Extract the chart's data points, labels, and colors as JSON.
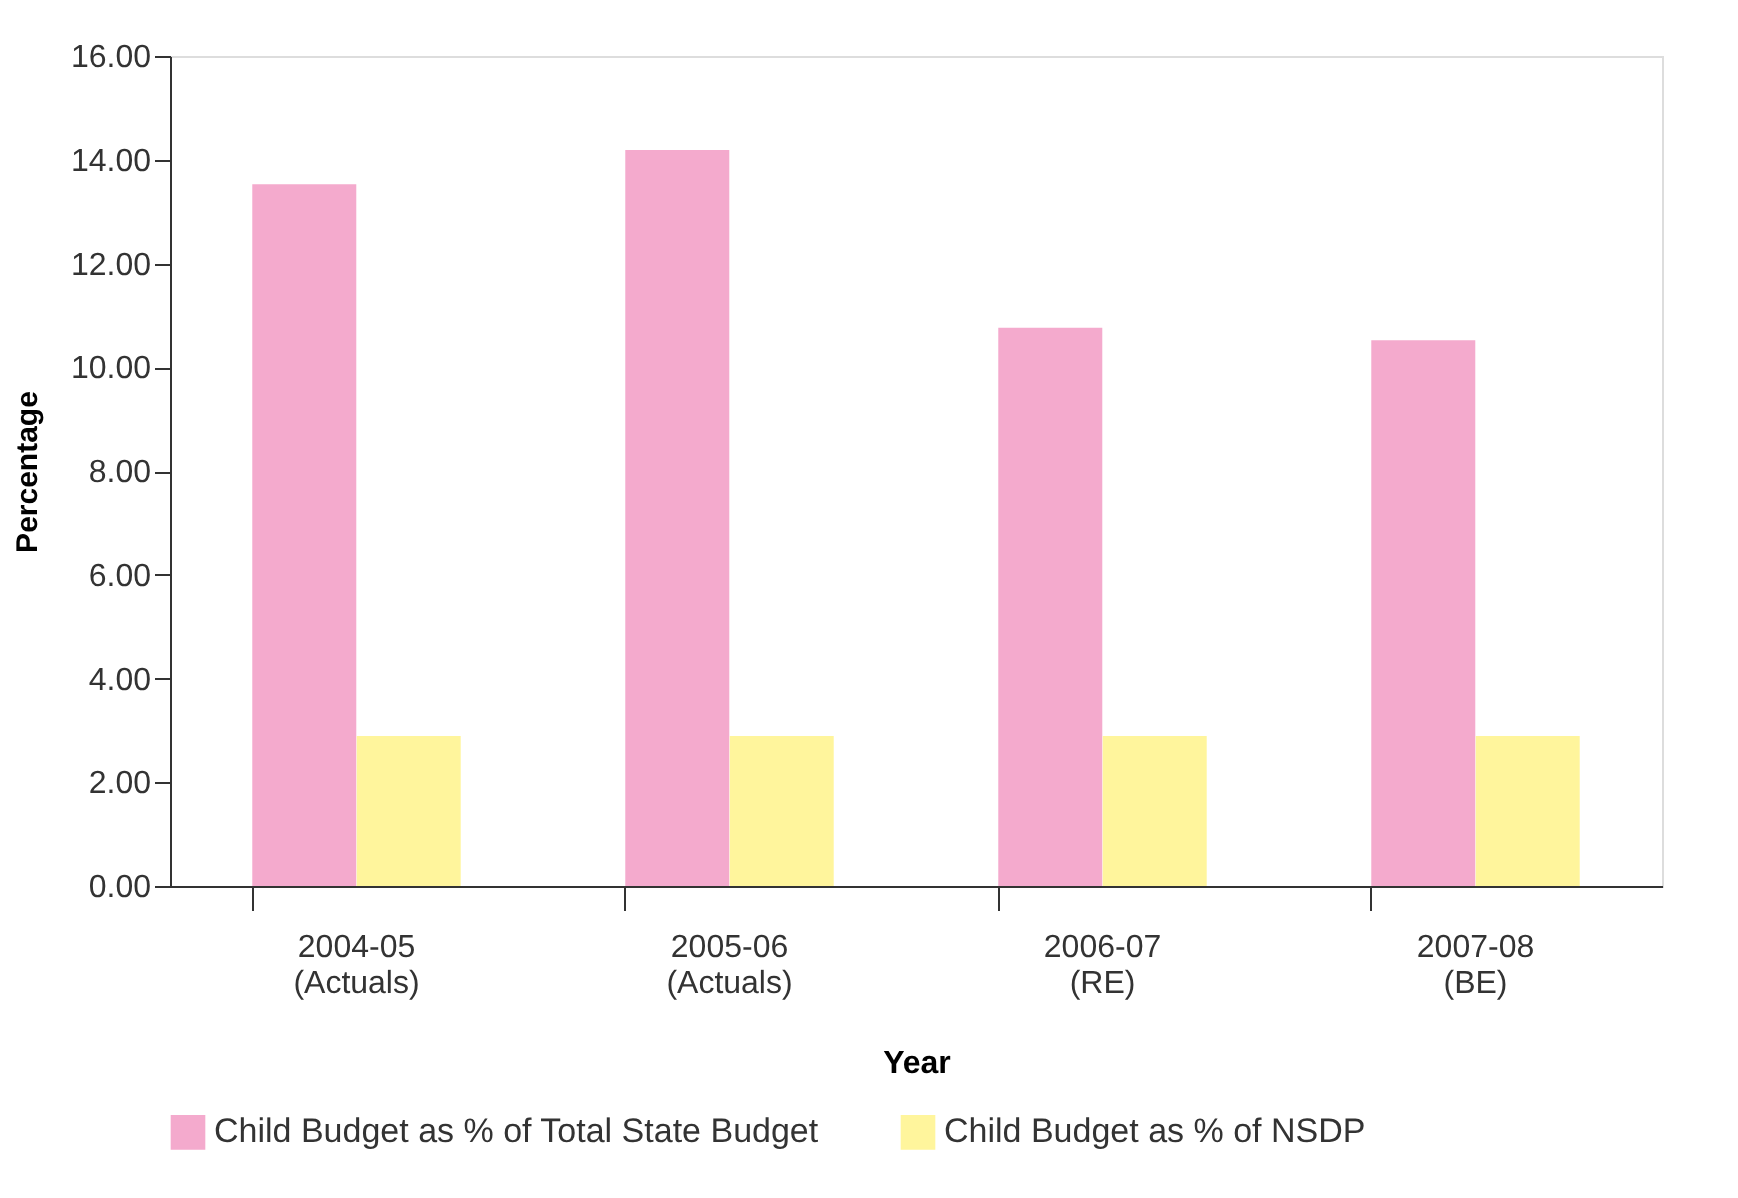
{
  "chart_data": {
    "type": "bar",
    "xlabel": "Year",
    "ylabel": "Percentage",
    "categories": [
      "2004-05 (Actuals)",
      "2005-06 (Actuals)",
      "2006-07 (RE)",
      "2007-08 (BE)"
    ],
    "series": [
      {
        "name": "Child Budget as % of Total State Budget",
        "color": "#f4aacd",
        "values": [
          13.53,
          14.19,
          10.76,
          10.52
        ]
      },
      {
        "name": "Child Budget as % of NSDP",
        "color": "#fff59c",
        "values": [
          2.89,
          2.89,
          2.89,
          2.89
        ]
      }
    ],
    "ylim": [
      0,
      16
    ],
    "yticks": [
      {
        "value": 0,
        "label": "0.00"
      },
      {
        "value": 2,
        "label": "2.00"
      },
      {
        "value": 4,
        "label": "4.00"
      },
      {
        "value": 6,
        "label": "6.00"
      },
      {
        "value": 8,
        "label": "8.00"
      },
      {
        "value": 10,
        "label": "10.00"
      },
      {
        "value": 12,
        "label": "12.00"
      },
      {
        "value": 14,
        "label": "14.00"
      },
      {
        "value": 16,
        "label": "16.00"
      }
    ],
    "grid": false,
    "legend": "bottom"
  }
}
